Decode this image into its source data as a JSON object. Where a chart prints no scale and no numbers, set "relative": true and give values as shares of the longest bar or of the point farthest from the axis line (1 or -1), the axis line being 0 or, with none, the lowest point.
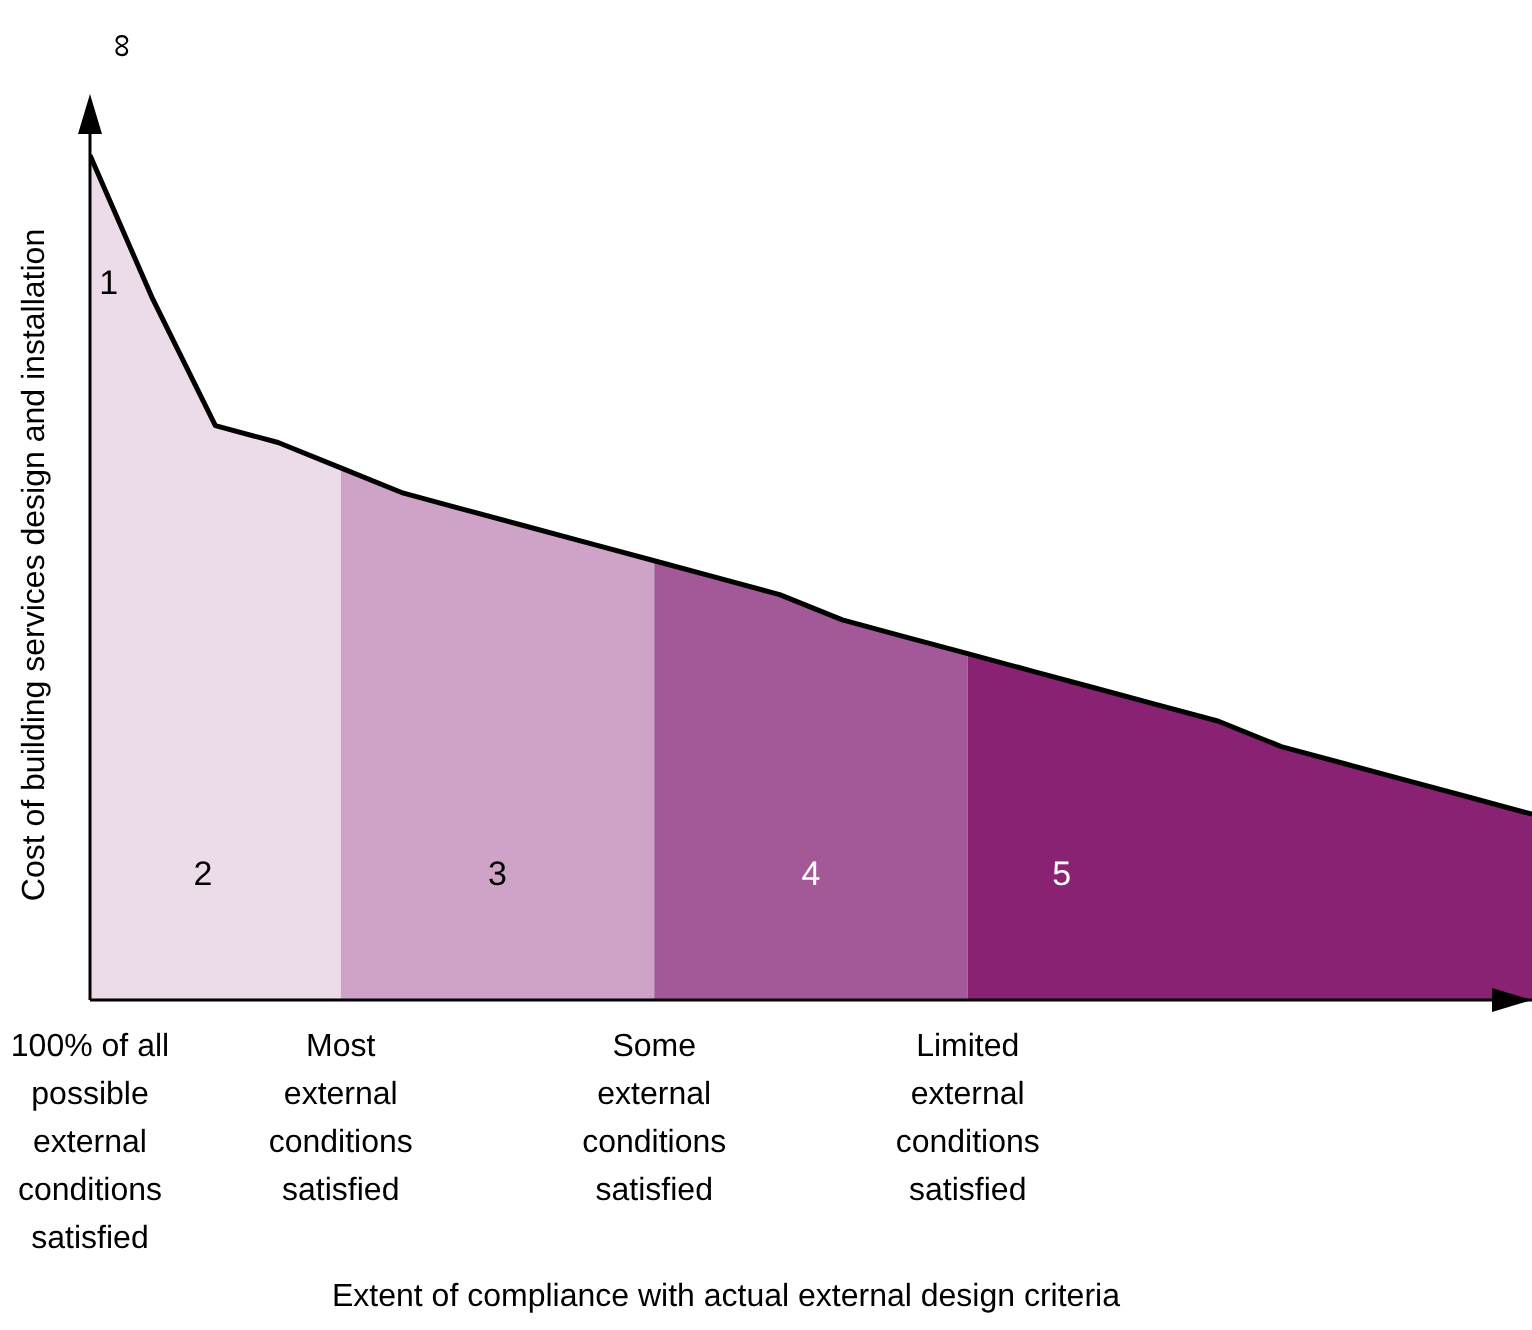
{
  "chart_data": {
    "type": "area",
    "relative": true,
    "xlabel": "Extent of compliance with actual external design criteria",
    "ylabel": "Cost of building services design and installation",
    "categories": [
      "100% of all possible external conditions satisfied",
      null,
      null,
      null,
      "Most external conditions satisfied",
      null,
      null,
      null,
      null,
      "Some external conditions satisfied",
      null,
      null,
      null,
      null,
      "Limited external conditions satisfied",
      null,
      null,
      null,
      null,
      null,
      null,
      null,
      null,
      null
    ],
    "series": [
      {
        "color": "#ecdce9",
        "values": [
          1.0,
          0.83,
          0.68,
          0.66,
          0.63,
          null,
          null,
          null,
          null,
          null,
          null,
          null,
          null,
          null,
          null,
          null,
          null,
          null,
          null,
          null,
          null,
          null,
          null,
          null
        ]
      },
      {
        "color": "#cfa3c8",
        "values": [
          null,
          null,
          null,
          null,
          0.63,
          0.6,
          0.58,
          0.56,
          0.54,
          0.52,
          null,
          null,
          null,
          null,
          null,
          null,
          null,
          null,
          null,
          null,
          null,
          null,
          null,
          null
        ]
      },
      {
        "color": "#a35898",
        "values": [
          null,
          null,
          null,
          null,
          null,
          null,
          null,
          null,
          null,
          0.52,
          0.5,
          0.48,
          0.45,
          0.43,
          0.41,
          null,
          null,
          null,
          null,
          null,
          null,
          null,
          null,
          null
        ]
      },
      {
        "color": "#8a2273",
        "values": [
          null,
          null,
          null,
          null,
          null,
          null,
          null,
          null,
          null,
          null,
          null,
          null,
          null,
          null,
          0.41,
          0.39,
          0.37,
          0.35,
          0.33,
          0.3,
          0.28,
          0.26,
          0.24,
          0.22
        ]
      },
      {
        "type": "line",
        "color": "#000000",
        "values": [
          1.0,
          0.83,
          0.68,
          0.66,
          0.63,
          0.6,
          0.58,
          0.56,
          0.54,
          0.52,
          0.5,
          0.48,
          0.45,
          0.43,
          0.41,
          0.39,
          0.37,
          0.35,
          0.33,
          0.3,
          0.28,
          0.26,
          0.24,
          0.22
        ]
      }
    ],
    "annotations": [
      "∞",
      "1",
      "2",
      "3",
      "4",
      "5"
    ],
    "grid": false
  }
}
